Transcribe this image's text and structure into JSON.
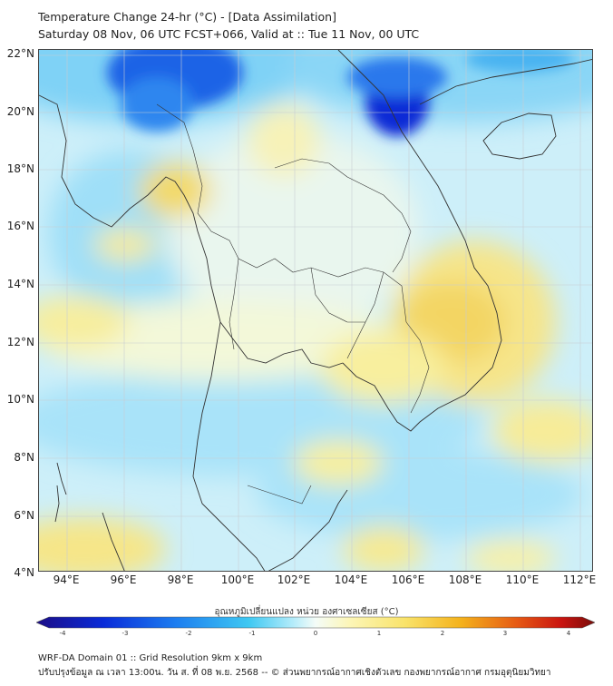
{
  "header": {
    "title_line1": "Temperature Change 24-hr (°C) - [Data Assimilation]",
    "title_line2": "Saturday 08 Nov, 06 UTC FCST+066, Valid at :: Tue 11 Nov, 00 UTC"
  },
  "map": {
    "latitude_labels": [
      "22°N",
      "20°N",
      "18°N",
      "16°N",
      "14°N",
      "12°N",
      "10°N",
      "8°N",
      "6°N",
      "4°N"
    ],
    "longitude_labels": [
      "94°E",
      "96°E",
      "98°E",
      "100°E",
      "102°E",
      "104°E",
      "106°E",
      "108°E",
      "110°E",
      "112°E"
    ],
    "extent": {
      "lon_min": 93,
      "lon_max": 112.5,
      "lat_min": 4,
      "lat_max": 22.2
    },
    "field_colors": {
      "deep_blue": "#0a2fd6",
      "blue": "#3aa7f0",
      "light_blue": "#a6e2f9",
      "neutral": "#eef8f3",
      "pale_yellow": "#fbf6be",
      "yellow": "#f6e170"
    }
  },
  "colorbar": {
    "title": "อุณหภูมิเปลี่ยนแปลง หน่วย องศาเซลเซียส (°C)",
    "ticks": [
      "-4",
      "-3",
      "-2",
      "-1",
      "0",
      "1",
      "2",
      "3",
      "4"
    ],
    "range": [
      -4,
      4
    ],
    "stops": [
      "#1c0d86",
      "#0a2bd8",
      "#1d7ef0",
      "#3ec8f2",
      "#b4ecfa",
      "#f4fcf8",
      "#fcf6b8",
      "#f9e36a",
      "#f4b21c",
      "#e65a14",
      "#c91410",
      "#7a0d0a"
    ]
  },
  "footer": {
    "line1": "WRF-DA Domain 01 :: Grid Resolution 9km x 9km",
    "line2": "ปรับปรุงข้อมูล ณ เวลา 13:00น. วัน ส. ที่ 08 พ.ย. 2568 -- © ส่วนพยากรณ์อากาศเชิงตัวเลข กองพยากรณ์อากาศ กรมอุตุนิยมวิทยา"
  }
}
